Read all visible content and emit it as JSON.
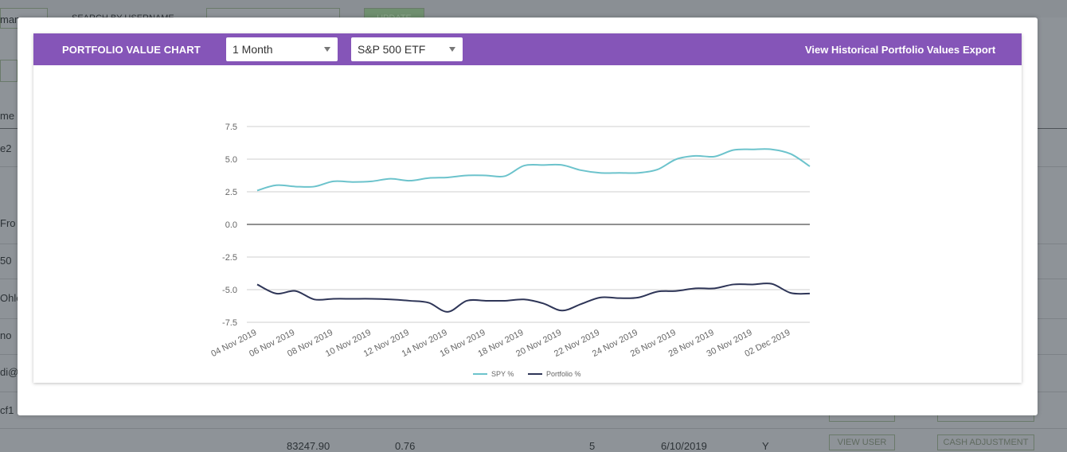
{
  "background": {
    "snippets": [
      "mane",
      "SEARCH BY USERNAME",
      "UPDATE",
      "me",
      "e2",
      "Fro",
      "50",
      "Ohle",
      "no",
      "di@c",
      "cf1",
      "83247.90",
      "0.76",
      "5",
      "6/10/2019",
      "Y",
      "VIEW USER",
      "CASH ADJUSTMENT"
    ]
  },
  "modal": {
    "header": {
      "title": "PORTFOLIO VALUE CHART",
      "period_select": {
        "value": "1 Month"
      },
      "benchmark_select": {
        "value": "S&P 500 ETF"
      },
      "view_historical_link": "View Historical Portfolio Values",
      "export_link": "Export"
    }
  },
  "colors": {
    "header": "#8555b8",
    "spy": "#6cc3cc",
    "portfolio": "#2e3557",
    "zero_line": "#222222",
    "grid": "#cfcfcf"
  },
  "chart_data": {
    "type": "line",
    "x": [
      "04 Nov 2019",
      "05 Nov 2019",
      "06 Nov 2019",
      "07 Nov 2019",
      "08 Nov 2019",
      "09 Nov 2019",
      "10 Nov 2019",
      "11 Nov 2019",
      "12 Nov 2019",
      "13 Nov 2019",
      "14 Nov 2019",
      "15 Nov 2019",
      "16 Nov 2019",
      "17 Nov 2019",
      "18 Nov 2019",
      "19 Nov 2019",
      "20 Nov 2019",
      "21 Nov 2019",
      "22 Nov 2019",
      "23 Nov 2019",
      "24 Nov 2019",
      "25 Nov 2019",
      "26 Nov 2019",
      "27 Nov 2019",
      "28 Nov 2019",
      "29 Nov 2019",
      "30 Nov 2019",
      "01 Dec 2019",
      "02 Dec 2019",
      "03 Dec 2019"
    ],
    "tick_labels": [
      "04 Nov 2019",
      "06 Nov 2019",
      "08 Nov 2019",
      "10 Nov 2019",
      "12 Nov 2019",
      "14 Nov 2019",
      "16 Nov 2019",
      "18 Nov 2019",
      "20 Nov 2019",
      "22 Nov 2019",
      "24 Nov 2019",
      "26 Nov 2019",
      "28 Nov 2019",
      "30 Nov 2019",
      "02 Dec 2019"
    ],
    "series": [
      {
        "name": "SPY %",
        "color": "#6cc3cc",
        "values": [
          2.6,
          3.0,
          2.9,
          2.9,
          3.3,
          3.25,
          3.3,
          3.5,
          3.35,
          3.55,
          3.6,
          3.75,
          3.75,
          3.7,
          4.5,
          4.55,
          4.55,
          4.15,
          3.95,
          3.95,
          3.95,
          4.2,
          5.0,
          5.25,
          5.2,
          5.7,
          5.75,
          5.75,
          5.4,
          4.45
        ]
      },
      {
        "name": "Portfolio %",
        "color": "#2e3557",
        "values": [
          -4.6,
          -5.3,
          -5.1,
          -5.75,
          -5.7,
          -5.7,
          -5.7,
          -5.75,
          -5.85,
          -6.0,
          -6.7,
          -5.85,
          -5.85,
          -5.85,
          -5.75,
          -6.05,
          -6.6,
          -6.1,
          -5.6,
          -5.65,
          -5.6,
          -5.15,
          -5.1,
          -4.9,
          -4.9,
          -4.6,
          -4.6,
          -4.55,
          -5.25,
          -5.3
        ]
      }
    ],
    "yticks": [
      7.5,
      5.0,
      2.5,
      0.0,
      -2.5,
      -5.0,
      -7.5
    ],
    "ylim": [
      -7.5,
      7.5
    ],
    "grid": true,
    "legend": "bottom"
  }
}
